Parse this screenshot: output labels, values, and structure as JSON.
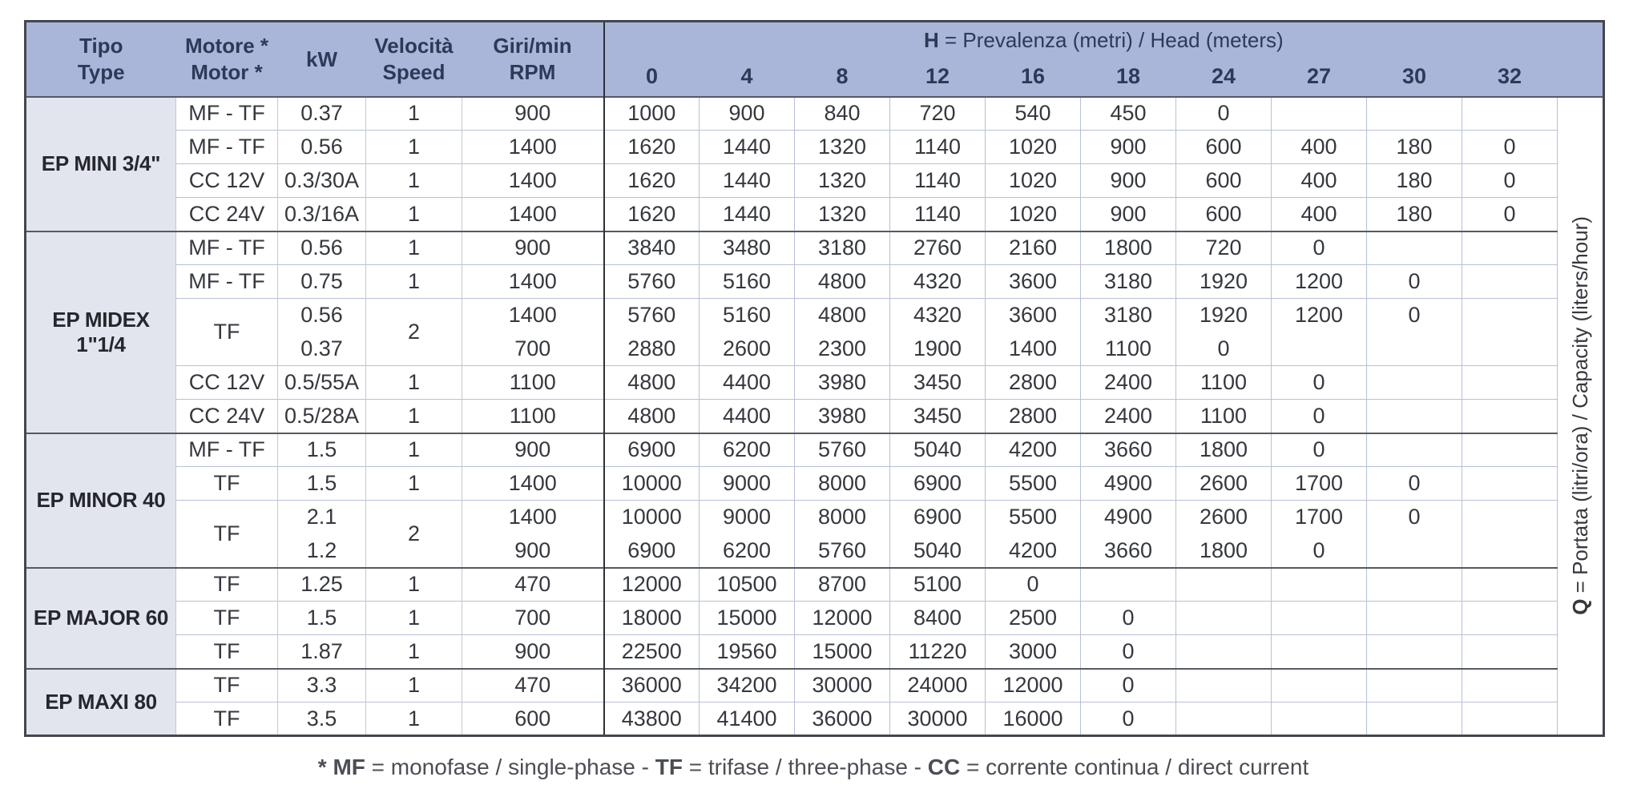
{
  "header": {
    "col_tipo": [
      "Tipo",
      "Type"
    ],
    "col_motore": [
      "Motore *",
      "Motor *"
    ],
    "col_kw": "kW",
    "col_velocita": [
      "Velocità",
      "Speed"
    ],
    "col_rpm": [
      "Giri/min",
      "RPM"
    ],
    "h_label": {
      "bold_part": "H",
      "rest": " = Prevalenza (metri) / Head (meters)"
    },
    "head_values": [
      "0",
      "4",
      "8",
      "12",
      "16",
      "18",
      "24",
      "27",
      "30",
      "32"
    ]
  },
  "side_label": {
    "bold_part": "Q",
    "rest": " = Portata (litri/ora) / Capacity (liters/hour)"
  },
  "footnote": {
    "segments": [
      {
        "text": "* MF",
        "bold": true
      },
      {
        "text": " = monofase / single-phase - ",
        "bold": false
      },
      {
        "text": "TF",
        "bold": true
      },
      {
        "text": " = trifase / three-phase - ",
        "bold": false
      },
      {
        "text": "CC",
        "bold": true
      },
      {
        "text": " = corrente continua / direct current",
        "bold": false
      }
    ]
  },
  "colors": {
    "header_bg": "#a9b6d9",
    "tipo_bg": "#e2e4ee",
    "outer_border": "#43474d",
    "section_divider": "#565a61",
    "light_grid": "#b6c0d6"
  },
  "sections": [
    {
      "tipo": "EP MINI 3/4\"",
      "rows": [
        {
          "motore": "MF - TF",
          "kw": [
            "0.37"
          ],
          "speed": "1",
          "rpm": [
            "900"
          ],
          "values": [
            [
              "1000",
              "900",
              "840",
              "720",
              "540",
              "450",
              "0",
              "",
              "",
              ""
            ]
          ]
        },
        {
          "motore": "MF - TF",
          "kw": [
            "0.56"
          ],
          "speed": "1",
          "rpm": [
            "1400"
          ],
          "values": [
            [
              "1620",
              "1440",
              "1320",
              "1140",
              "1020",
              "900",
              "600",
              "400",
              "180",
              "0"
            ]
          ]
        },
        {
          "motore": "CC 12V",
          "kw": [
            "0.3/30A"
          ],
          "speed": "1",
          "rpm": [
            "1400"
          ],
          "values": [
            [
              "1620",
              "1440",
              "1320",
              "1140",
              "1020",
              "900",
              "600",
              "400",
              "180",
              "0"
            ]
          ]
        },
        {
          "motore": "CC 24V",
          "kw": [
            "0.3/16A"
          ],
          "speed": "1",
          "rpm": [
            "1400"
          ],
          "values": [
            [
              "1620",
              "1440",
              "1320",
              "1140",
              "1020",
              "900",
              "600",
              "400",
              "180",
              "0"
            ]
          ]
        }
      ]
    },
    {
      "tipo": "EP MIDEX 1\"1/4",
      "rows": [
        {
          "motore": "MF - TF",
          "kw": [
            "0.56"
          ],
          "speed": "1",
          "rpm": [
            "900"
          ],
          "values": [
            [
              "3840",
              "3480",
              "3180",
              "2760",
              "2160",
              "1800",
              "720",
              "0",
              "",
              ""
            ]
          ]
        },
        {
          "motore": "MF - TF",
          "kw": [
            "0.75"
          ],
          "speed": "1",
          "rpm": [
            "1400"
          ],
          "values": [
            [
              "5760",
              "5160",
              "4800",
              "4320",
              "3600",
              "3180",
              "1920",
              "1200",
              "0",
              ""
            ]
          ]
        },
        {
          "motore": "TF",
          "kw": [
            "0.56",
            "0.37"
          ],
          "speed": "2",
          "rpm": [
            "1400",
            "700"
          ],
          "values": [
            [
              "5760",
              "5160",
              "4800",
              "4320",
              "3600",
              "3180",
              "1920",
              "1200",
              "0",
              ""
            ],
            [
              "2880",
              "2600",
              "2300",
              "1900",
              "1400",
              "1100",
              "0",
              "",
              "",
              ""
            ]
          ]
        },
        {
          "motore": "CC 12V",
          "kw": [
            "0.5/55A"
          ],
          "speed": "1",
          "rpm": [
            "1100"
          ],
          "values": [
            [
              "4800",
              "4400",
              "3980",
              "3450",
              "2800",
              "2400",
              "1100",
              "0",
              "",
              ""
            ]
          ]
        },
        {
          "motore": "CC 24V",
          "kw": [
            "0.5/28A"
          ],
          "speed": "1",
          "rpm": [
            "1100"
          ],
          "values": [
            [
              "4800",
              "4400",
              "3980",
              "3450",
              "2800",
              "2400",
              "1100",
              "0",
              "",
              ""
            ]
          ]
        }
      ]
    },
    {
      "tipo": "EP MINOR 40",
      "rows": [
        {
          "motore": "MF - TF",
          "kw": [
            "1.5"
          ],
          "speed": "1",
          "rpm": [
            "900"
          ],
          "values": [
            [
              "6900",
              "6200",
              "5760",
              "5040",
              "4200",
              "3660",
              "1800",
              "0",
              "",
              ""
            ]
          ]
        },
        {
          "motore": "TF",
          "kw": [
            "1.5"
          ],
          "speed": "1",
          "rpm": [
            "1400"
          ],
          "values": [
            [
              "10000",
              "9000",
              "8000",
              "6900",
              "5500",
              "4900",
              "2600",
              "1700",
              "0",
              ""
            ]
          ]
        },
        {
          "motore": "TF",
          "kw": [
            "2.1",
            "1.2"
          ],
          "speed": "2",
          "rpm": [
            "1400",
            "900"
          ],
          "values": [
            [
              "10000",
              "9000",
              "8000",
              "6900",
              "5500",
              "4900",
              "2600",
              "1700",
              "0",
              ""
            ],
            [
              "6900",
              "6200",
              "5760",
              "5040",
              "4200",
              "3660",
              "1800",
              "0",
              "",
              ""
            ]
          ]
        }
      ]
    },
    {
      "tipo": "EP MAJOR 60",
      "rows": [
        {
          "motore": "TF",
          "kw": [
            "1.25"
          ],
          "speed": "1",
          "rpm": [
            "470"
          ],
          "values": [
            [
              "12000",
              "10500",
              "8700",
              "5100",
              "0",
              "",
              "",
              "",
              "",
              ""
            ]
          ]
        },
        {
          "motore": "TF",
          "kw": [
            "1.5"
          ],
          "speed": "1",
          "rpm": [
            "700"
          ],
          "values": [
            [
              "18000",
              "15000",
              "12000",
              "8400",
              "2500",
              "0",
              "",
              "",
              "",
              ""
            ]
          ]
        },
        {
          "motore": "TF",
          "kw": [
            "1.87"
          ],
          "speed": "1",
          "rpm": [
            "900"
          ],
          "values": [
            [
              "22500",
              "19560",
              "15000",
              "11220",
              "3000",
              "0",
              "",
              "",
              "",
              ""
            ]
          ]
        }
      ]
    },
    {
      "tipo": "EP MAXI 80",
      "rows": [
        {
          "motore": "TF",
          "kw": [
            "3.3"
          ],
          "speed": "1",
          "rpm": [
            "470"
          ],
          "values": [
            [
              "36000",
              "34200",
              "30000",
              "24000",
              "12000",
              "0",
              "",
              "",
              "",
              ""
            ]
          ]
        },
        {
          "motore": "TF",
          "kw": [
            "3.5"
          ],
          "speed": "1",
          "rpm": [
            "600"
          ],
          "values": [
            [
              "43800",
              "41400",
              "36000",
              "30000",
              "16000",
              "0",
              "",
              "",
              "",
              ""
            ]
          ]
        }
      ]
    }
  ]
}
